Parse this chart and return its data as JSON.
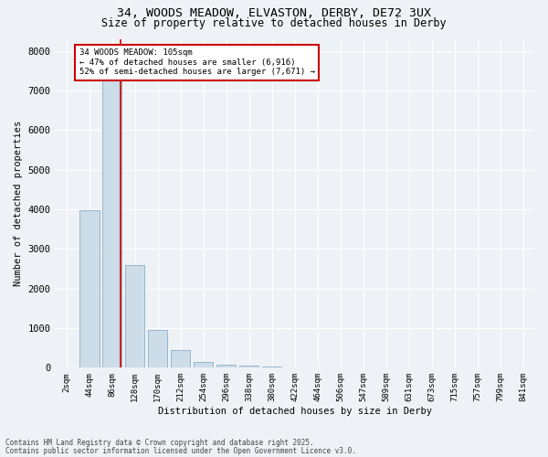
{
  "title_line1": "34, WOODS MEADOW, ELVASTON, DERBY, DE72 3UX",
  "title_line2": "Size of property relative to detached houses in Derby",
  "xlabel": "Distribution of detached houses by size in Derby",
  "ylabel": "Number of detached properties",
  "bin_labels": [
    "2sqm",
    "44sqm",
    "86sqm",
    "128sqm",
    "170sqm",
    "212sqm",
    "254sqm",
    "296sqm",
    "338sqm",
    "380sqm",
    "422sqm",
    "464sqm",
    "506sqm",
    "547sqm",
    "589sqm",
    "631sqm",
    "673sqm",
    "715sqm",
    "757sqm",
    "799sqm",
    "841sqm"
  ],
  "bar_values": [
    10,
    3980,
    7480,
    2580,
    950,
    440,
    145,
    88,
    48,
    20,
    5,
    2,
    1,
    0,
    0,
    0,
    0,
    0,
    0,
    0,
    0
  ],
  "bar_color": "#ccdce8",
  "bar_edge_color": "#8aafc8",
  "red_line_x": 2.38,
  "annotation_text": "34 WOODS MEADOW: 105sqm\n← 47% of detached houses are smaller (6,916)\n52% of semi-detached houses are larger (7,671) →",
  "annotation_box_color": "#ffffff",
  "annotation_box_edge": "#cc0000",
  "red_line_color": "#cc0000",
  "ylim": [
    0,
    8300
  ],
  "yticks": [
    0,
    1000,
    2000,
    3000,
    4000,
    5000,
    6000,
    7000,
    8000
  ],
  "footer_line1": "Contains HM Land Registry data © Crown copyright and database right 2025.",
  "footer_line2": "Contains public sector information licensed under the Open Government Licence v3.0.",
  "background_color": "#eef2f6",
  "plot_bg_color": "#eef2f6",
  "grid_color": "#ffffff"
}
